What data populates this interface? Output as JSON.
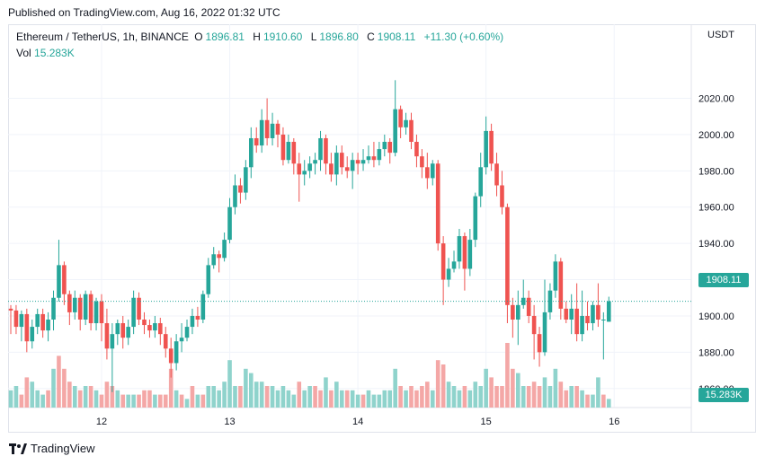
{
  "published": "Published on TradingView.com, Aug 16, 2022 01:32 UTC",
  "legend": {
    "symbol": "Ethereum / TetherUS, 1h, BINANCE",
    "o_label": "O",
    "o": "1896.81",
    "h_label": "H",
    "h": "1910.60",
    "l_label": "L",
    "l": "1896.80",
    "c_label": "C",
    "c": "1908.11",
    "change": "+11.30 (+0.60%)",
    "vol_label": "Vol",
    "vol": "15.283K"
  },
  "currency": "USDT",
  "last_price": "1908.11",
  "last_volume": "15.283K",
  "brand": "TradingView",
  "colors": {
    "up": "#26a69a",
    "down": "#ef5350",
    "up_vol": "#8fd3cc",
    "down_vol": "#f4a7a6",
    "grid": "#f0f3fa"
  },
  "chart_data": {
    "type": "candlestick",
    "ylim": [
      1848,
      2046
    ],
    "y_ticks": [
      1860,
      1880,
      1900,
      1920,
      1940,
      1960,
      1980,
      2000,
      2020
    ],
    "y_tick_labels": [
      "1860.00",
      "1880.00",
      "1900.00",
      "1920.00",
      "1940.00",
      "1960.00",
      "1980.00",
      "2000.00",
      "2020.00"
    ],
    "x_ticks": [
      {
        "index": 17,
        "label": "12"
      },
      {
        "index": 41,
        "label": "13"
      },
      {
        "index": 65,
        "label": "14"
      },
      {
        "index": 89,
        "label": "15"
      },
      {
        "index": 113,
        "label": "16"
      }
    ],
    "volume_scale_max": 15,
    "candles": [
      [
        1904,
        1903,
        1906,
        1890
      ],
      [
        1903,
        1894,
        1906,
        1890
      ],
      [
        1894,
        1901,
        1903,
        1886
      ],
      [
        1901,
        1886,
        1904,
        1880
      ],
      [
        1886,
        1894,
        1898,
        1882
      ],
      [
        1894,
        1901,
        1904,
        1890
      ],
      [
        1901,
        1892,
        1904,
        1888
      ],
      [
        1892,
        1898,
        1902,
        1886
      ],
      [
        1898,
        1910,
        1914,
        1892
      ],
      [
        1910,
        1928,
        1942,
        1908
      ],
      [
        1928,
        1912,
        1930,
        1906
      ],
      [
        1912,
        1902,
        1914,
        1895
      ],
      [
        1902,
        1910,
        1914,
        1898
      ],
      [
        1910,
        1898,
        1912,
        1892
      ],
      [
        1898,
        1912,
        1914,
        1895
      ],
      [
        1912,
        1896,
        1914,
        1892
      ],
      [
        1896,
        1908,
        1910,
        1892
      ],
      [
        1908,
        1896,
        1912,
        1886
      ],
      [
        1896,
        1882,
        1904,
        1876
      ],
      [
        1882,
        1890,
        1896,
        1858
      ],
      [
        1890,
        1896,
        1898,
        1884
      ],
      [
        1896,
        1888,
        1900,
        1882
      ],
      [
        1888,
        1894,
        1898,
        1884
      ],
      [
        1894,
        1910,
        1914,
        1890
      ],
      [
        1910,
        1898,
        1913,
        1895
      ],
      [
        1898,
        1895,
        1902,
        1890
      ],
      [
        1895,
        1892,
        1898,
        1888
      ],
      [
        1892,
        1896,
        1900,
        1888
      ],
      [
        1896,
        1890,
        1899,
        1884
      ],
      [
        1890,
        1882,
        1894,
        1877
      ],
      [
        1882,
        1874,
        1888,
        1866
      ],
      [
        1874,
        1886,
        1890,
        1870
      ],
      [
        1886,
        1888,
        1896,
        1880
      ],
      [
        1888,
        1894,
        1898,
        1886
      ],
      [
        1894,
        1900,
        1904,
        1890
      ],
      [
        1900,
        1898,
        1905,
        1894
      ],
      [
        1898,
        1912,
        1914,
        1896
      ],
      [
        1912,
        1928,
        1932,
        1910
      ],
      [
        1928,
        1934,
        1938,
        1926
      ],
      [
        1934,
        1932,
        1936,
        1924
      ],
      [
        1932,
        1942,
        1946,
        1930
      ],
      [
        1942,
        1960,
        1965,
        1940
      ],
      [
        1960,
        1972,
        1978,
        1956
      ],
      [
        1972,
        1968,
        1976,
        1962
      ],
      [
        1968,
        1982,
        1986,
        1964
      ],
      [
        1982,
        1998,
        2004,
        1976
      ],
      [
        1998,
        1994,
        2004,
        1990
      ],
      [
        1994,
        2008,
        2014,
        1990
      ],
      [
        2008,
        1998,
        2020,
        1994
      ],
      [
        1998,
        2006,
        2012,
        1994
      ],
      [
        2006,
        2000,
        2008,
        1993
      ],
      [
        2000,
        1986,
        2004,
        1983
      ],
      [
        1986,
        1996,
        2000,
        1984
      ],
      [
        1996,
        1984,
        1998,
        1978
      ],
      [
        1984,
        1978,
        1990,
        1963
      ],
      [
        1978,
        1980,
        1986,
        1972
      ],
      [
        1980,
        1984,
        1988,
        1976
      ],
      [
        1984,
        1986,
        1990,
        1978
      ],
      [
        1986,
        1998,
        2002,
        1980
      ],
      [
        1998,
        1984,
        2000,
        1978
      ],
      [
        1984,
        1978,
        1990,
        1974
      ],
      [
        1978,
        1990,
        1994,
        1972
      ],
      [
        1990,
        1982,
        1994,
        1978
      ],
      [
        1982,
        1980,
        1988,
        1976
      ],
      [
        1980,
        1986,
        1990,
        1970
      ],
      [
        1986,
        1984,
        1990,
        1978
      ],
      [
        1984,
        1986,
        1992,
        1980
      ],
      [
        1986,
        1988,
        1994,
        1984
      ],
      [
        1988,
        1986,
        1996,
        1982
      ],
      [
        1986,
        1992,
        1996,
        1983
      ],
      [
        1992,
        1996,
        2000,
        1988
      ],
      [
        1996,
        1990,
        1998,
        1984
      ],
      [
        1990,
        2014,
        2030,
        1988
      ],
      [
        2014,
        2004,
        2016,
        1998
      ],
      [
        2004,
        2008,
        2012,
        2000
      ],
      [
        2008,
        1996,
        2012,
        1992
      ],
      [
        1996,
        1988,
        2000,
        1982
      ],
      [
        1988,
        1982,
        1992,
        1976
      ],
      [
        1982,
        1976,
        1990,
        1970
      ],
      [
        1976,
        1984,
        1986,
        1972
      ],
      [
        1984,
        1940,
        1986,
        1936
      ],
      [
        1940,
        1920,
        1944,
        1906
      ],
      [
        1920,
        1926,
        1932,
        1916
      ],
      [
        1926,
        1930,
        1936,
        1924
      ],
      [
        1930,
        1944,
        1948,
        1926
      ],
      [
        1944,
        1926,
        1946,
        1914
      ],
      [
        1926,
        1942,
        1948,
        1922
      ],
      [
        1942,
        1966,
        1968,
        1938
      ],
      [
        1966,
        1982,
        1990,
        1960
      ],
      [
        1982,
        2002,
        2010,
        1978
      ],
      [
        2002,
        1984,
        2006,
        1980
      ],
      [
        1984,
        1972,
        1990,
        1966
      ],
      [
        1972,
        1960,
        1980,
        1956
      ],
      [
        1960,
        1906,
        1962,
        1896
      ],
      [
        1906,
        1898,
        1910,
        1888
      ],
      [
        1898,
        1906,
        1914,
        1884
      ],
      [
        1906,
        1910,
        1920,
        1904
      ],
      [
        1910,
        1900,
        1914,
        1896
      ],
      [
        1900,
        1890,
        1906,
        1876
      ],
      [
        1890,
        1880,
        1894,
        1872
      ],
      [
        1880,
        1902,
        1920,
        1878
      ],
      [
        1902,
        1914,
        1918,
        1898
      ],
      [
        1914,
        1930,
        1934,
        1910
      ],
      [
        1930,
        1904,
        1932,
        1898
      ],
      [
        1904,
        1898,
        1908,
        1896
      ],
      [
        1898,
        1904,
        1912,
        1890
      ],
      [
        1904,
        1890,
        1918,
        1886
      ],
      [
        1890,
        1900,
        1914,
        1886
      ],
      [
        1900,
        1896,
        1908,
        1892
      ],
      [
        1896,
        1906,
        1908,
        1892
      ],
      [
        1906,
        1898,
        1918,
        1894
      ],
      [
        1898,
        1898,
        1902,
        1876
      ],
      [
        1896.81,
        1908.11,
        1910.6,
        1896.8
      ]
    ],
    "volumes": [
      [
        4,
        "up"
      ],
      [
        5,
        "up"
      ],
      [
        3,
        "down"
      ],
      [
        7,
        "down"
      ],
      [
        6,
        "up"
      ],
      [
        4,
        "up"
      ],
      [
        3,
        "up"
      ],
      [
        4,
        "down"
      ],
      [
        9,
        "up"
      ],
      [
        12,
        "down"
      ],
      [
        9,
        "down"
      ],
      [
        6,
        "down"
      ],
      [
        5,
        "up"
      ],
      [
        4,
        "down"
      ],
      [
        5,
        "up"
      ],
      [
        5,
        "down"
      ],
      [
        4,
        "up"
      ],
      [
        3,
        "down"
      ],
      [
        6,
        "down"
      ],
      [
        5,
        "down"
      ],
      [
        4,
        "up"
      ],
      [
        3,
        "down"
      ],
      [
        3,
        "up"
      ],
      [
        3,
        "up"
      ],
      [
        3,
        "down"
      ],
      [
        4,
        "down"
      ],
      [
        4,
        "down"
      ],
      [
        3,
        "up"
      ],
      [
        3,
        "down"
      ],
      [
        3,
        "down"
      ],
      [
        9,
        "down"
      ],
      [
        4,
        "up"
      ],
      [
        3,
        "down"
      ],
      [
        2,
        "up"
      ],
      [
        5,
        "down"
      ],
      [
        3,
        "up"
      ],
      [
        3,
        "down"
      ],
      [
        5,
        "up"
      ],
      [
        5,
        "up"
      ],
      [
        4,
        "up"
      ],
      [
        6,
        "up"
      ],
      [
        11,
        "up"
      ],
      [
        5,
        "up"
      ],
      [
        5,
        "down"
      ],
      [
        9,
        "up"
      ],
      [
        8,
        "up"
      ],
      [
        6,
        "up"
      ],
      [
        6,
        "up"
      ],
      [
        5,
        "down"
      ],
      [
        5,
        "up"
      ],
      [
        4,
        "up"
      ],
      [
        5,
        "up"
      ],
      [
        4,
        "up"
      ],
      [
        3,
        "up"
      ],
      [
        6,
        "down"
      ],
      [
        4,
        "up"
      ],
      [
        5,
        "up"
      ],
      [
        5,
        "down"
      ],
      [
        4,
        "down"
      ],
      [
        7,
        "up"
      ],
      [
        4,
        "down"
      ],
      [
        6,
        "up"
      ],
      [
        4,
        "up"
      ],
      [
        4,
        "down"
      ],
      [
        4,
        "up"
      ],
      [
        3,
        "up"
      ],
      [
        3,
        "down"
      ],
      [
        4,
        "up"
      ],
      [
        3,
        "up"
      ],
      [
        3,
        "up"
      ],
      [
        4,
        "up"
      ],
      [
        4,
        "up"
      ],
      [
        9,
        "up"
      ],
      [
        5,
        "down"
      ],
      [
        4,
        "up"
      ],
      [
        5,
        "down"
      ],
      [
        4,
        "down"
      ],
      [
        5,
        "down"
      ],
      [
        6,
        "down"
      ],
      [
        4,
        "up"
      ],
      [
        11,
        "down"
      ],
      [
        10,
        "down"
      ],
      [
        6,
        "up"
      ],
      [
        5,
        "up"
      ],
      [
        4,
        "up"
      ],
      [
        5,
        "down"
      ],
      [
        4,
        "up"
      ],
      [
        6,
        "up"
      ],
      [
        5,
        "up"
      ],
      [
        9,
        "up"
      ],
      [
        7,
        "down"
      ],
      [
        5,
        "down"
      ],
      [
        5,
        "down"
      ],
      [
        15,
        "down"
      ],
      [
        9,
        "down"
      ],
      [
        8,
        "up"
      ],
      [
        5,
        "up"
      ],
      [
        5,
        "down"
      ],
      [
        6,
        "down"
      ],
      [
        5,
        "down"
      ],
      [
        7,
        "up"
      ],
      [
        5,
        "up"
      ],
      [
        9,
        "up"
      ],
      [
        6,
        "down"
      ],
      [
        4,
        "down"
      ],
      [
        5,
        "up"
      ],
      [
        5,
        "down"
      ],
      [
        4,
        "up"
      ],
      [
        3,
        "down"
      ],
      [
        3,
        "up"
      ],
      [
        7,
        "up"
      ],
      [
        3,
        "down"
      ],
      [
        2,
        "up"
      ]
    ]
  }
}
